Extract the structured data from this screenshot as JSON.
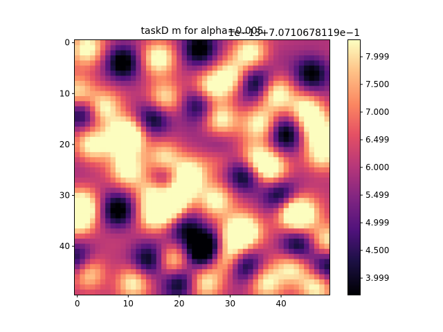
{
  "chart_data": {
    "type": "heatmap",
    "title": "taskD m for alpha=0.005",
    "colormap": "magma",
    "grid": false,
    "xlabel": "",
    "ylabel": "",
    "xlim": [
      -0.5,
      49.5
    ],
    "ylim": [
      49.5,
      -0.5
    ],
    "x_ticks": [
      "0",
      "10",
      "20",
      "30",
      "40"
    ],
    "y_ticks": [
      "0",
      "10",
      "20",
      "30",
      "40"
    ],
    "colorbar": {
      "offset_label": "1e−13+7.0710678119e−1",
      "ticks": [
        "3.999",
        "4.500",
        "4.999",
        "5.499",
        "6.000",
        "6.499",
        "7.000",
        "7.500",
        "7.999"
      ],
      "tick_values": [
        3.999,
        4.5,
        4.999,
        5.499,
        6.0,
        6.499,
        7.0,
        7.5,
        7.999
      ],
      "range": [
        3.7,
        8.3
      ]
    },
    "grid_size": [
      50,
      50
    ],
    "highs": [
      [
        1,
        2
      ],
      [
        10,
        0
      ],
      [
        13,
        5
      ],
      [
        18,
        10
      ],
      [
        19,
        9
      ],
      [
        3,
        16
      ],
      [
        11,
        17
      ],
      [
        9,
        26
      ],
      [
        7,
        30
      ],
      [
        15,
        28
      ],
      [
        2,
        34
      ],
      [
        16,
        36
      ],
      [
        10,
        39
      ],
      [
        13,
        45
      ],
      [
        17,
        47
      ],
      [
        22,
        48
      ],
      [
        20,
        3
      ],
      [
        25,
        10
      ],
      [
        23,
        17
      ],
      [
        29,
        15
      ],
      [
        26,
        22
      ],
      [
        29,
        20
      ],
      [
        22,
        28
      ],
      [
        23,
        35
      ],
      [
        25,
        38
      ],
      [
        32,
        1
      ],
      [
        35,
        0
      ],
      [
        34,
        15
      ],
      [
        33,
        19
      ],
      [
        31,
        27
      ],
      [
        38,
        31
      ],
      [
        37,
        33
      ],
      [
        33,
        42
      ],
      [
        34,
        44
      ],
      [
        39,
        49
      ],
      [
        45,
        2
      ],
      [
        47,
        11
      ],
      [
        43,
        19
      ],
      [
        47,
        25
      ],
      [
        42,
        29
      ],
      [
        47,
        37
      ],
      [
        44,
        42
      ],
      [
        48,
        47
      ]
    ],
    "lows": [
      [
        1,
        24
      ],
      [
        4,
        9
      ],
      [
        8,
        35
      ],
      [
        15,
        15
      ],
      [
        12,
        24
      ],
      [
        14,
        1
      ],
      [
        18,
        41
      ],
      [
        21,
        28
      ],
      [
        27,
        17
      ],
      [
        26,
        33
      ],
      [
        30,
        40
      ],
      [
        40,
        26
      ],
      [
        36,
        21
      ],
      [
        43,
        14
      ],
      [
        41,
        24
      ],
      [
        44,
        33
      ],
      [
        43,
        0
      ],
      [
        44,
        49
      ],
      [
        47,
        20
      ],
      [
        40,
        43
      ],
      [
        33,
        8
      ],
      [
        6,
        46
      ]
    ]
  }
}
